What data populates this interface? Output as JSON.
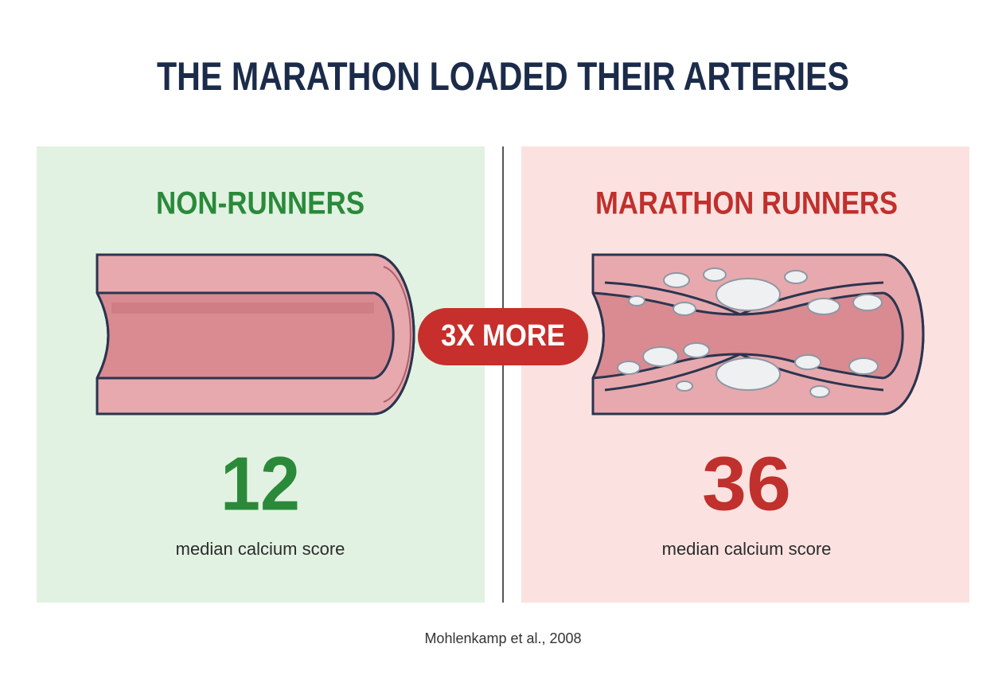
{
  "title": "THE MARATHON LOADED THEIR ARTERIES",
  "panels": [
    {
      "heading": "NON-RUNNERS",
      "value": "12",
      "caption": "median calcium score"
    },
    {
      "heading": "MARATHON RUNNERS",
      "value": "36",
      "caption": "median calcium score"
    }
  ],
  "badge": "3X MORE",
  "source": "Mohlenkamp et al., 2008"
}
